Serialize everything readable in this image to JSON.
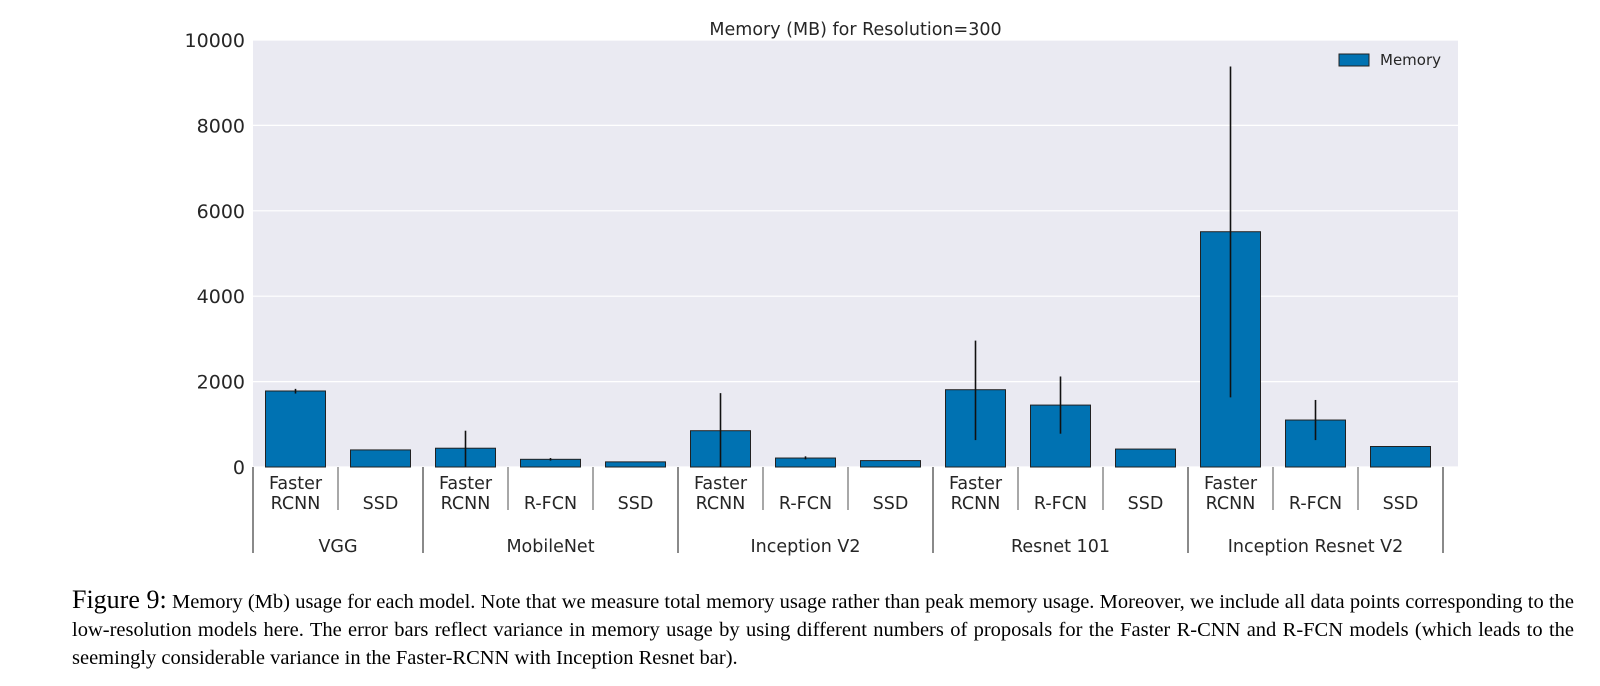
{
  "chart_data": {
    "type": "bar",
    "title": "Memory (MB) for Resolution=300",
    "xlabel": "",
    "ylabel": "",
    "ylim": [
      0,
      10000
    ],
    "yticks": [
      "0",
      "2000",
      "4000",
      "6000",
      "8000",
      "10000"
    ],
    "grid": true,
    "legend": {
      "label": "Memory",
      "position": "top-right"
    },
    "groups": [
      {
        "name": "VGG",
        "bars": [
          {
            "label": [
              "Faster",
              "RCNN"
            ],
            "value": 1780,
            "err_low": 1720,
            "err_high": 1830
          },
          {
            "label": [
              "SSD"
            ],
            "value": 400
          }
        ]
      },
      {
        "name": "MobileNet",
        "bars": [
          {
            "label": [
              "Faster",
              "RCNN"
            ],
            "value": 440,
            "err_low": 0,
            "err_high": 850
          },
          {
            "label": [
              "R-FCN"
            ],
            "value": 180,
            "err_low": 150,
            "err_high": 210
          },
          {
            "label": [
              "SSD"
            ],
            "value": 120
          }
        ]
      },
      {
        "name": "Inception V2",
        "bars": [
          {
            "label": [
              "Faster",
              "RCNN"
            ],
            "value": 850,
            "err_low": 0,
            "err_high": 1730
          },
          {
            "label": [
              "R-FCN"
            ],
            "value": 210,
            "err_low": 180,
            "err_high": 250
          },
          {
            "label": [
              "SSD"
            ],
            "value": 150
          }
        ]
      },
      {
        "name": "Resnet 101",
        "bars": [
          {
            "label": [
              "Faster",
              "RCNN"
            ],
            "value": 1810,
            "err_low": 630,
            "err_high": 2960
          },
          {
            "label": [
              "R-FCN"
            ],
            "value": 1450,
            "err_low": 780,
            "err_high": 2120
          },
          {
            "label": [
              "SSD"
            ],
            "value": 420
          }
        ]
      },
      {
        "name": "Inception Resnet V2",
        "bars": [
          {
            "label": [
              "Faster",
              "RCNN"
            ],
            "value": 5510,
            "err_low": 1630,
            "err_high": 9380
          },
          {
            "label": [
              "R-FCN"
            ],
            "value": 1100,
            "err_low": 630,
            "err_high": 1570
          },
          {
            "label": [
              "SSD"
            ],
            "value": 480
          }
        ]
      }
    ],
    "colors": {
      "bar": "#0072b2",
      "bar_edge": "#222222",
      "plot_bg": "#eaeaf2",
      "grid": "#ffffff",
      "error": "#111111",
      "separator": "#8a8a8a"
    }
  },
  "caption": {
    "label": "Figure 9:",
    "text": "Memory (Mb) usage for each model. Note that we measure total memory usage rather than peak memory usage. Moreover, we include all data points corresponding to the low-resolution models here.  The error bars reflect variance in memory usage by using different numbers of proposals for the Faster R-CNN and R-FCN models (which leads to the seemingly considerable variance in the Faster-RCNN with Inception Resnet bar)."
  }
}
